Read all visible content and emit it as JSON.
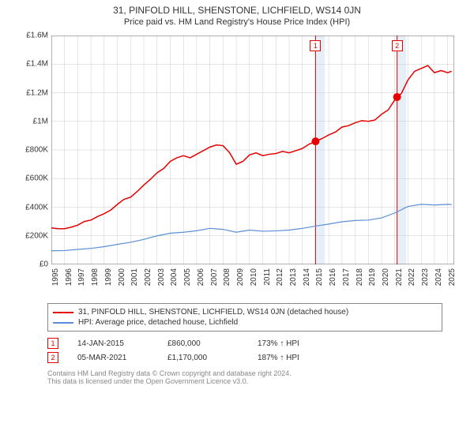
{
  "title": "31, PINFOLD HILL, SHENSTONE, LICHFIELD, WS14 0JN",
  "subtitle": "Price paid vs. HM Land Registry's House Price Index (HPI)",
  "chart": {
    "type": "line",
    "background_color": "#ffffff",
    "grid_color": "#cccccc",
    "axis_color": "#666666",
    "ylim": [
      0,
      1600000
    ],
    "y_ticks": [
      0,
      200000,
      400000,
      600000,
      800000,
      1000000,
      1200000,
      1400000,
      1600000
    ],
    "y_tick_labels": [
      "£0",
      "£200K",
      "£400K",
      "£600K",
      "£800K",
      "£1M",
      "£1.2M",
      "£1.4M",
      "£1.6M"
    ],
    "xlim": [
      1995,
      2025.5
    ],
    "x_ticks": [
      1995,
      1996,
      1997,
      1998,
      1999,
      2000,
      2001,
      2002,
      2003,
      2004,
      2005,
      2006,
      2007,
      2008,
      2009,
      2010,
      2011,
      2012,
      2013,
      2014,
      2015,
      2016,
      2017,
      2018,
      2019,
      2020,
      2021,
      2022,
      2023,
      2024,
      2025
    ],
    "label_fontsize": 10,
    "highlight_bands": [
      {
        "x_start": 2015.0,
        "x_end": 2015.7,
        "fill": "#e6eef8"
      },
      {
        "x_start": 2021.17,
        "x_end": 2021.87,
        "fill": "#e6eef8"
      }
    ],
    "series": [
      {
        "name": "price_paid",
        "label": "31, PINFOLD HILL, SHENSTONE, LICHFIELD, WS14 0JN (detached house)",
        "color": "#e60000",
        "line_width": 1.5,
        "data": [
          [
            1995,
            255000
          ],
          [
            1995.5,
            250000
          ],
          [
            1996,
            250000
          ],
          [
            1996.5,
            260000
          ],
          [
            1997,
            275000
          ],
          [
            1997.5,
            300000
          ],
          [
            1998,
            310000
          ],
          [
            1998.5,
            335000
          ],
          [
            1999,
            355000
          ],
          [
            1999.5,
            380000
          ],
          [
            2000,
            420000
          ],
          [
            2000.5,
            455000
          ],
          [
            2001,
            470000
          ],
          [
            2001.5,
            510000
          ],
          [
            2002,
            555000
          ],
          [
            2002.5,
            595000
          ],
          [
            2003,
            640000
          ],
          [
            2003.5,
            670000
          ],
          [
            2004,
            720000
          ],
          [
            2004.5,
            745000
          ],
          [
            2005,
            760000
          ],
          [
            2005.5,
            745000
          ],
          [
            2006,
            770000
          ],
          [
            2006.5,
            795000
          ],
          [
            2007,
            820000
          ],
          [
            2007.5,
            835000
          ],
          [
            2008,
            830000
          ],
          [
            2008.5,
            780000
          ],
          [
            2009,
            700000
          ],
          [
            2009.5,
            720000
          ],
          [
            2010,
            765000
          ],
          [
            2010.5,
            780000
          ],
          [
            2011,
            760000
          ],
          [
            2011.5,
            770000
          ],
          [
            2012,
            775000
          ],
          [
            2012.5,
            790000
          ],
          [
            2013,
            780000
          ],
          [
            2013.5,
            795000
          ],
          [
            2014,
            810000
          ],
          [
            2014.5,
            840000
          ],
          [
            2015,
            860000
          ],
          [
            2015.5,
            880000
          ],
          [
            2016,
            905000
          ],
          [
            2016.5,
            925000
          ],
          [
            2017,
            960000
          ],
          [
            2017.5,
            970000
          ],
          [
            2018,
            990000
          ],
          [
            2018.5,
            1005000
          ],
          [
            2019,
            1000000
          ],
          [
            2019.5,
            1010000
          ],
          [
            2020,
            1050000
          ],
          [
            2020.5,
            1080000
          ],
          [
            2021,
            1150000
          ],
          [
            2021.17,
            1170000
          ],
          [
            2021.5,
            1195000
          ],
          [
            2022,
            1290000
          ],
          [
            2022.5,
            1350000
          ],
          [
            2023,
            1370000
          ],
          [
            2023.5,
            1390000
          ],
          [
            2024,
            1340000
          ],
          [
            2024.5,
            1355000
          ],
          [
            2025,
            1340000
          ],
          [
            2025.3,
            1350000
          ]
        ],
        "markers": [
          {
            "x": 2015.0,
            "y": 860000,
            "color": "#e60000",
            "size": 5
          },
          {
            "x": 2021.17,
            "y": 1170000,
            "color": "#e60000",
            "size": 5
          }
        ]
      },
      {
        "name": "hpi",
        "label": "HPI: Average price, detached house, Lichfield",
        "color": "#5b8fd6",
        "line_width": 1.2,
        "data": [
          [
            1995,
            95000
          ],
          [
            1996,
            97000
          ],
          [
            1997,
            105000
          ],
          [
            1998,
            112000
          ],
          [
            1999,
            124000
          ],
          [
            2000,
            140000
          ],
          [
            2001,
            155000
          ],
          [
            2002,
            175000
          ],
          [
            2003,
            200000
          ],
          [
            2004,
            218000
          ],
          [
            2005,
            225000
          ],
          [
            2006,
            235000
          ],
          [
            2007,
            252000
          ],
          [
            2008,
            245000
          ],
          [
            2009,
            225000
          ],
          [
            2010,
            240000
          ],
          [
            2011,
            232000
          ],
          [
            2012,
            234000
          ],
          [
            2013,
            240000
          ],
          [
            2014,
            252000
          ],
          [
            2015,
            268000
          ],
          [
            2016,
            282000
          ],
          [
            2017,
            298000
          ],
          [
            2018,
            307000
          ],
          [
            2019,
            310000
          ],
          [
            2020,
            325000
          ],
          [
            2021,
            360000
          ],
          [
            2022,
            405000
          ],
          [
            2023,
            420000
          ],
          [
            2024,
            415000
          ],
          [
            2025,
            420000
          ],
          [
            2025.3,
            418000
          ]
        ]
      }
    ],
    "event_markers": [
      {
        "num": "1",
        "x": 2015.0,
        "color": "#e60000"
      },
      {
        "num": "2",
        "x": 2021.17,
        "color": "#e60000"
      }
    ]
  },
  "legend": {
    "items": [
      {
        "label": "31, PINFOLD HILL, SHENSTONE, LICHFIELD, WS14 0JN (detached house)",
        "color": "#e60000"
      },
      {
        "label": "HPI: Average price, detached house, Lichfield",
        "color": "#5b8fd6"
      }
    ]
  },
  "events": [
    {
      "num": "1",
      "date": "14-JAN-2015",
      "price": "£860,000",
      "pct": "173% ↑ HPI",
      "color": "#e60000"
    },
    {
      "num": "2",
      "date": "05-MAR-2021",
      "price": "£1,170,000",
      "pct": "187% ↑ HPI",
      "color": "#e60000"
    }
  ],
  "footer": {
    "line1": "Contains HM Land Registry data © Crown copyright and database right 2024.",
    "line2": "This data is licensed under the Open Government Licence v3.0."
  }
}
